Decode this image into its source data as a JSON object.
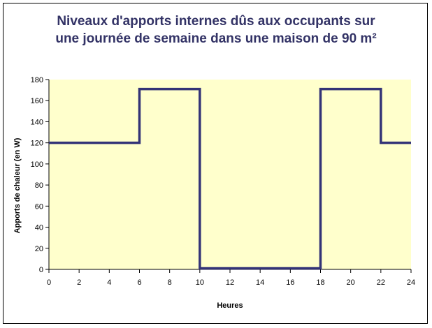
{
  "chart_data": {
    "type": "line",
    "step": true,
    "title_lines": [
      "Niveaux d'apports internes dûs aux occupants sur",
      "une journée de semaine dans une maison de 90 m²"
    ],
    "xlabel": "Heures",
    "ylabel": "Apports de chaleur (en W)",
    "xlim": [
      0,
      24
    ],
    "ylim": [
      0,
      180
    ],
    "xticks": [
      0,
      2,
      4,
      6,
      8,
      10,
      12,
      14,
      16,
      18,
      20,
      22,
      24
    ],
    "yticks": [
      0,
      20,
      40,
      60,
      80,
      100,
      120,
      140,
      160,
      180
    ],
    "grid": false,
    "series": [
      {
        "points": [
          [
            0,
            120
          ],
          [
            6,
            120
          ],
          [
            6,
            171
          ],
          [
            10,
            171
          ],
          [
            10,
            1
          ],
          [
            18,
            1
          ],
          [
            18,
            171
          ],
          [
            22,
            171
          ],
          [
            22,
            120
          ],
          [
            24,
            120
          ]
        ]
      }
    ],
    "colors": {
      "plot_background": "#ffffcc",
      "line": "#333377",
      "title": "#333366"
    }
  }
}
